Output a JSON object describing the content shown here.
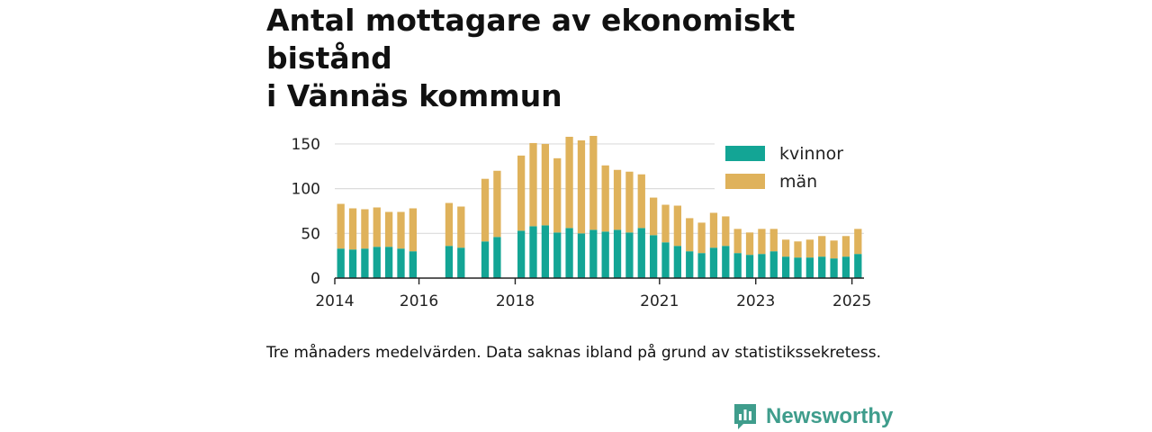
{
  "title_lines": [
    "Antal mottagare av ekonomiskt bistånd",
    "i Vännäs kommun"
  ],
  "footnote": "Tre månaders medelvärden. Data saknas ibland på grund av statistikssekretess.",
  "brand": {
    "name": "Newsworthy",
    "color": "#3f9d8c"
  },
  "chart_data": {
    "type": "bar",
    "stacked": true,
    "title": "Antal mottagare av ekonomiskt bistånd i Vännäs kommun",
    "xlabel": "",
    "ylabel": "",
    "ylim": [
      0,
      160
    ],
    "yticks": [
      0,
      50,
      100,
      150
    ],
    "xticks": [
      "2014",
      "2016",
      "2018",
      "2021",
      "2023",
      "2025"
    ],
    "grid": true,
    "legend_position": "top-right",
    "categories": [
      "2014-Q2",
      "2014-Q3",
      "2014-Q4",
      "2015-Q1",
      "2015-Q2",
      "2015-Q3",
      "2015-Q4",
      "2016-Q1",
      "2016-Q2",
      "2016-Q3",
      "2016-Q4",
      "2017-Q1",
      "2017-Q2",
      "2017-Q3",
      "2017-Q4",
      "2018-Q1",
      "2018-Q2",
      "2018-Q3",
      "2018-Q4",
      "2019-Q1",
      "2019-Q2",
      "2019-Q3",
      "2019-Q4",
      "2020-Q1",
      "2020-Q2",
      "2020-Q3",
      "2020-Q4",
      "2021-Q1",
      "2021-Q2",
      "2021-Q3",
      "2021-Q4",
      "2022-Q1",
      "2022-Q2",
      "2022-Q3",
      "2022-Q4",
      "2023-Q1",
      "2023-Q2",
      "2023-Q3",
      "2023-Q4",
      "2024-Q1",
      "2024-Q2",
      "2024-Q3",
      "2024-Q4",
      "2025-Q1"
    ],
    "series": [
      {
        "name": "kvinnor",
        "color": "#13a595",
        "values": [
          33,
          32,
          33,
          35,
          35,
          33,
          30,
          null,
          null,
          36,
          34,
          null,
          41,
          46,
          null,
          53,
          58,
          59,
          51,
          56,
          50,
          54,
          52,
          54,
          51,
          56,
          48,
          40,
          36,
          30,
          28,
          34,
          36,
          28,
          26,
          27,
          30,
          24,
          23,
          23,
          24,
          22,
          24,
          27
        ]
      },
      {
        "name": "män",
        "color": "#dfb25b",
        "values": [
          50,
          46,
          44,
          44,
          39,
          41,
          48,
          null,
          null,
          48,
          46,
          null,
          70,
          74,
          null,
          84,
          93,
          91,
          83,
          102,
          104,
          105,
          74,
          67,
          68,
          60,
          42,
          42,
          45,
          37,
          34,
          39,
          33,
          27,
          25,
          28,
          25,
          19,
          18,
          20,
          23,
          20,
          23,
          28
        ]
      }
    ]
  }
}
